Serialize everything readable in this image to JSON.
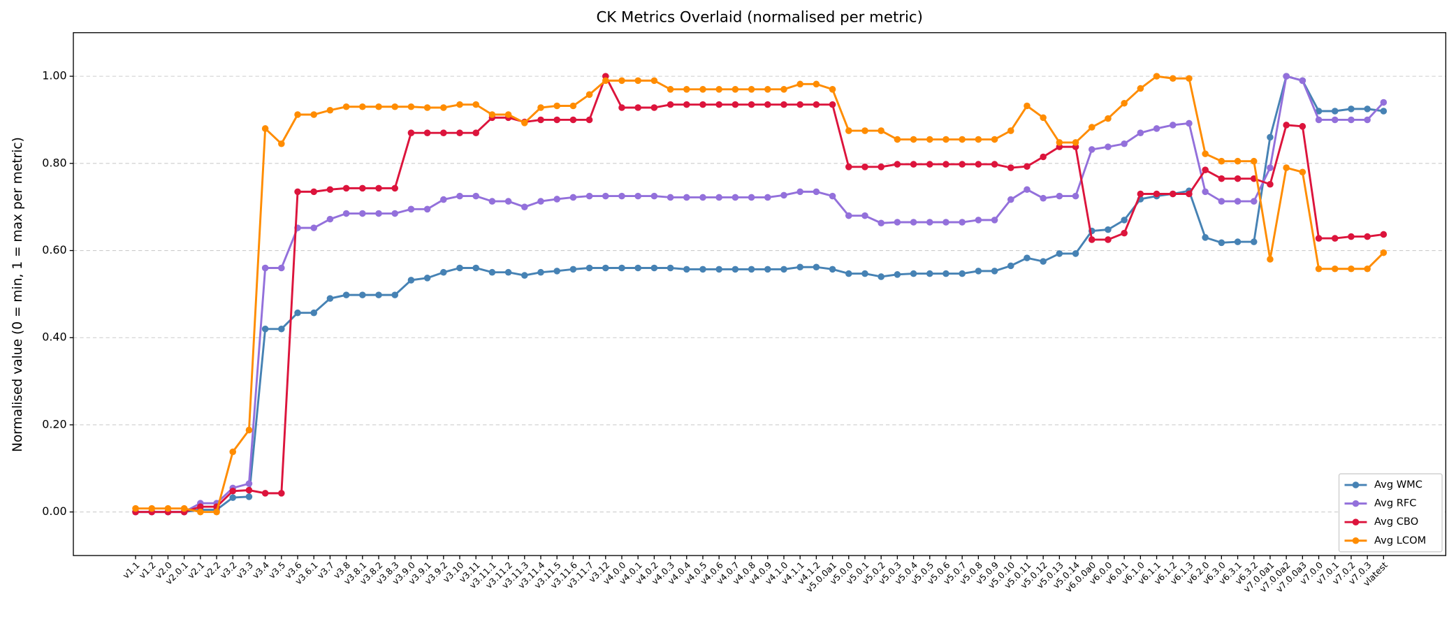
{
  "chart_data": {
    "type": "line",
    "title": "CK Metrics Overlaid (normalised per metric)",
    "y_label": "Normalised value (0 = min, 1 = max per metric)",
    "categories": [
      "v1.1",
      "v1.2",
      "v2.0",
      "v2.0.1",
      "v2.1",
      "v2.2",
      "v3.2",
      "v3.3",
      "v3.4",
      "v3.5",
      "v3.6",
      "v3.6.1",
      "v3.7",
      "v3.8",
      "v3.8.1",
      "v3.8.2",
      "v3.8.3",
      "v3.9.0",
      "v3.9.1",
      "v3.9.2",
      "v3.10",
      "v3.11",
      "v3.11.1",
      "v3.11.2",
      "v3.11.3",
      "v3.11.4",
      "v3.11.5",
      "v3.11.6",
      "v3.11.7",
      "v3.12",
      "v4.0.0",
      "v4.0.1",
      "v4.0.2",
      "v4.0.3",
      "v4.0.4",
      "v4.0.5",
      "v4.0.6",
      "v4.0.7",
      "v4.0.8",
      "v4.0.9",
      "v4.1.0",
      "v4.1.1",
      "v4.1.2",
      "v5.0.0a1",
      "v5.0.0",
      "v5.0.1",
      "v5.0.2",
      "v5.0.3",
      "v5.0.4",
      "v5.0.5",
      "v5.0.6",
      "v5.0.7",
      "v5.0.8",
      "v5.0.9",
      "v5.0.10",
      "v5.0.11",
      "v5.0.12",
      "v5.0.13",
      "v5.0.14",
      "v6.0.0a0",
      "v6.0.0",
      "v6.0.1",
      "v6.1.0",
      "v6.1.1",
      "v6.1.2",
      "v6.1.3",
      "v6.2.0",
      "v6.3.0",
      "v6.3.1",
      "v6.3.2",
      "v7.0.0a1",
      "v7.0.0a2",
      "v7.0.0a3",
      "v7.0.0",
      "v7.0.1",
      "v7.0.2",
      "v7.0.3",
      "vlatest"
    ],
    "series": [
      {
        "name": "Avg WMC",
        "color": "#4682b4",
        "values": [
          0,
          0,
          0,
          0,
          0.005,
          0.005,
          0.033,
          0.035,
          0.42,
          0.42,
          0.457,
          0.457,
          0.49,
          0.498,
          0.498,
          0.498,
          0.498,
          0.532,
          0.537,
          0.55,
          0.56,
          0.56,
          0.55,
          0.55,
          0.543,
          0.55,
          0.553,
          0.557,
          0.56,
          0.56,
          0.56,
          0.56,
          0.56,
          0.56,
          0.557,
          0.557,
          0.557,
          0.557,
          0.557,
          0.557,
          0.557,
          0.562,
          0.562,
          0.557,
          0.547,
          0.547,
          0.54,
          0.545,
          0.547,
          0.547,
          0.547,
          0.547,
          0.553,
          0.553,
          0.565,
          0.583,
          0.575,
          0.593,
          0.593,
          0.645,
          0.648,
          0.67,
          0.718,
          0.725,
          0.73,
          0.737,
          0.63,
          0.618,
          0.62,
          0.62,
          0.86,
          1.0,
          0.99,
          0.92,
          0.92,
          0.925,
          0.925,
          0.92
        ]
      },
      {
        "name": "Avg RFC",
        "color": "#9370db",
        "values": [
          0,
          0,
          0,
          0,
          0.02,
          0.02,
          0.055,
          0.065,
          0.56,
          0.56,
          0.652,
          0.652,
          0.672,
          0.685,
          0.685,
          0.685,
          0.685,
          0.695,
          0.695,
          0.717,
          0.725,
          0.725,
          0.713,
          0.713,
          0.7,
          0.713,
          0.718,
          0.722,
          0.725,
          0.725,
          0.725,
          0.725,
          0.725,
          0.722,
          0.722,
          0.722,
          0.722,
          0.722,
          0.722,
          0.722,
          0.727,
          0.735,
          0.735,
          0.725,
          0.68,
          0.68,
          0.663,
          0.665,
          0.665,
          0.665,
          0.665,
          0.665,
          0.67,
          0.67,
          0.717,
          0.74,
          0.72,
          0.725,
          0.725,
          0.832,
          0.838,
          0.845,
          0.87,
          0.88,
          0.888,
          0.892,
          0.735,
          0.713,
          0.713,
          0.713,
          0.79,
          1.0,
          0.99,
          0.9,
          0.9,
          0.9,
          0.9,
          0.94
        ]
      },
      {
        "name": "Avg CBO",
        "color": "#dc143c",
        "values": [
          0,
          0,
          0,
          0,
          0.012,
          0.012,
          0.048,
          0.05,
          0.043,
          0.043,
          0.735,
          0.735,
          0.74,
          0.743,
          0.743,
          0.743,
          0.743,
          0.87,
          0.87,
          0.87,
          0.87,
          0.87,
          0.905,
          0.905,
          0.895,
          0.9,
          0.9,
          0.9,
          0.9,
          1.0,
          0.928,
          0.928,
          0.928,
          0.935,
          0.935,
          0.935,
          0.935,
          0.935,
          0.935,
          0.935,
          0.935,
          0.935,
          0.935,
          0.935,
          0.792,
          0.792,
          0.792,
          0.798,
          0.798,
          0.798,
          0.798,
          0.798,
          0.798,
          0.798,
          0.79,
          0.793,
          0.815,
          0.838,
          0.838,
          0.625,
          0.625,
          0.64,
          0.73,
          0.73,
          0.73,
          0.73,
          0.785,
          0.765,
          0.765,
          0.765,
          0.752,
          0.888,
          0.885,
          0.628,
          0.628,
          0.632,
          0.632,
          0.637
        ]
      },
      {
        "name": "Avg LCOM",
        "color": "#ff8c00",
        "values": [
          0.008,
          0.008,
          0.008,
          0.008,
          0,
          0,
          0.138,
          0.188,
          0.88,
          0.845,
          0.912,
          0.912,
          0.922,
          0.93,
          0.93,
          0.93,
          0.93,
          0.93,
          0.928,
          0.928,
          0.935,
          0.935,
          0.912,
          0.912,
          0.893,
          0.928,
          0.932,
          0.932,
          0.958,
          0.99,
          0.99,
          0.99,
          0.99,
          0.97,
          0.97,
          0.97,
          0.97,
          0.97,
          0.97,
          0.97,
          0.97,
          0.982,
          0.982,
          0.97,
          0.875,
          0.875,
          0.875,
          0.855,
          0.855,
          0.855,
          0.855,
          0.855,
          0.855,
          0.855,
          0.875,
          0.932,
          0.905,
          0.848,
          0.848,
          0.883,
          0.903,
          0.938,
          0.972,
          1.0,
          0.995,
          0.995,
          0.822,
          0.805,
          0.805,
          0.805,
          0.58,
          0.79,
          0.78,
          0.558,
          0.558,
          0.558,
          0.558,
          0.595
        ]
      }
    ],
    "ylim": [
      -0.1,
      1.1
    ],
    "yticks": [
      {
        "value": 0,
        "label": "0.00"
      },
      {
        "value": 0.2,
        "label": "0.20"
      },
      {
        "value": 0.4,
        "label": "0.40"
      },
      {
        "value": 0.6,
        "label": "0.60"
      },
      {
        "value": 0.8,
        "label": "0.80"
      },
      {
        "value": 1,
        "label": "1.00"
      }
    ],
    "grid": true,
    "legend": "lower right"
  }
}
